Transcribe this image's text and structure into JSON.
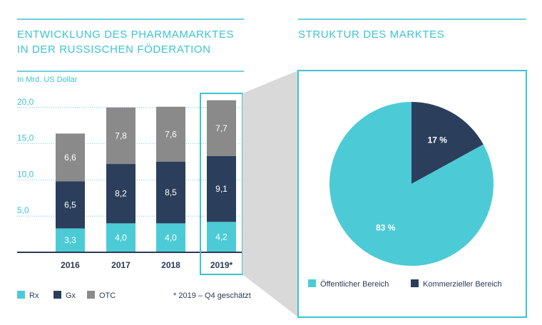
{
  "colors": {
    "accent": "#3cc4d0",
    "rx": "#4ccbd6",
    "gx": "#2b3f5c",
    "otc": "#8a8a8a",
    "navy": "#2b3a55",
    "connector": "#d9d9d9"
  },
  "chart_data": [
    {
      "type": "bar",
      "stacked": true,
      "title_lines": [
        "ENTWICKLUNG DES PHARMAMARKTES",
        "IN DER RUSSISCHEN FÖDERATION"
      ],
      "unit_label": "In Mrd. US Dollar",
      "categories": [
        "2016",
        "2017",
        "2018",
        "2019*"
      ],
      "series": [
        {
          "name": "Rx",
          "values": [
            3.3,
            4.0,
            4.0,
            4.2
          ],
          "labels": [
            "3,3",
            "4,0",
            "4,0",
            "4,2"
          ]
        },
        {
          "name": "Gx",
          "values": [
            6.5,
            8.2,
            8.5,
            9.1
          ],
          "labels": [
            "6,5",
            "8,2",
            "8,5",
            "9,1"
          ]
        },
        {
          "name": "OTC",
          "values": [
            6.6,
            7.8,
            7.6,
            7.7
          ],
          "labels": [
            "6,6",
            "7,8",
            "7,6",
            "7,7"
          ]
        }
      ],
      "yticks": [
        5,
        10,
        15,
        20
      ],
      "ytick_labels": [
        "5,0",
        "10,0",
        "15,0",
        "20,0"
      ],
      "ylim": [
        0,
        23
      ],
      "highlighted_category": "2019*",
      "footnote": "* 2019 – Q4 geschätzt",
      "legend_position": "bottom-left"
    },
    {
      "type": "pie",
      "title": "STRUKTUR DES MARKTES",
      "slices": [
        {
          "name": "Öffentlicher Bereich",
          "value": 83,
          "label": "83 %"
        },
        {
          "name": "Kommerzieller Bereich",
          "value": 17,
          "label": "17 %"
        }
      ],
      "legend_position": "bottom"
    }
  ]
}
